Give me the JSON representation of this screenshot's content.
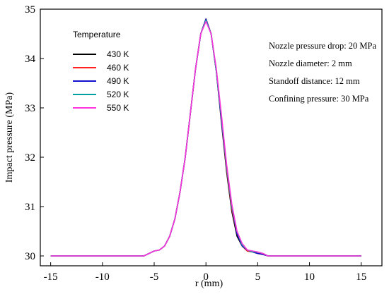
{
  "chart_data": {
    "type": "line",
    "xlabel": "r (mm)",
    "ylabel": "Impact pressure (MPa)",
    "xlim": [
      -16,
      17
    ],
    "ylim": [
      29.8,
      35
    ],
    "xticks": [
      -15,
      -10,
      -5,
      0,
      5,
      10,
      15
    ],
    "yticks": [
      30,
      31,
      32,
      33,
      34,
      35
    ],
    "grid": false,
    "legend": {
      "title": "Temperature",
      "position": "top-left"
    },
    "annotations": [
      "Nozzle pressure drop: 20 MPa",
      "Nozzle diameter: 2 mm",
      "Standoff distance: 12 mm",
      "Confining pressure: 30 MPa"
    ],
    "x": [
      -15,
      -6,
      -5.5,
      -5,
      -4.5,
      -4,
      -3.5,
      -3,
      -2.5,
      -2,
      -1.5,
      -1,
      -0.5,
      0,
      0.5,
      1,
      1.5,
      2,
      2.5,
      3,
      3.5,
      4,
      4.5,
      5,
      5.5,
      6,
      15
    ],
    "series": [
      {
        "name": "430 K",
        "color": "#000000",
        "values": [
          30.0,
          30.0,
          30.05,
          30.1,
          30.12,
          30.2,
          30.4,
          30.75,
          31.3,
          32.0,
          32.9,
          33.8,
          34.5,
          34.8,
          34.5,
          33.75,
          32.7,
          31.7,
          30.9,
          30.4,
          30.2,
          30.1,
          30.08,
          30.05,
          30.03,
          30.0,
          30.0
        ]
      },
      {
        "name": "460 K",
        "color": "#ff2020",
        "values": [
          30.0,
          30.0,
          30.05,
          30.1,
          30.12,
          30.2,
          30.4,
          30.75,
          31.3,
          32.0,
          32.9,
          33.8,
          34.5,
          34.8,
          34.5,
          33.75,
          32.75,
          31.75,
          30.95,
          30.45,
          30.2,
          30.1,
          30.08,
          30.05,
          30.03,
          30.0,
          30.0
        ]
      },
      {
        "name": "490 K",
        "color": "#1010cc",
        "values": [
          30.0,
          30.0,
          30.05,
          30.1,
          30.12,
          30.2,
          30.4,
          30.75,
          31.3,
          32.0,
          32.9,
          33.8,
          34.5,
          34.8,
          34.5,
          33.75,
          32.75,
          31.8,
          31.0,
          30.45,
          30.2,
          30.12,
          30.08,
          30.05,
          30.03,
          30.0,
          30.0
        ]
      },
      {
        "name": "520 K",
        "color": "#00a0a0",
        "values": [
          30.0,
          30.0,
          30.05,
          30.1,
          30.12,
          30.2,
          30.4,
          30.75,
          31.3,
          32.0,
          32.9,
          33.8,
          34.5,
          34.78,
          34.5,
          33.75,
          32.8,
          31.8,
          31.0,
          30.5,
          30.22,
          30.12,
          30.08,
          30.08,
          30.05,
          30.0,
          30.0
        ]
      },
      {
        "name": "550 K",
        "color": "#ff33dd",
        "values": [
          30.0,
          30.0,
          30.05,
          30.1,
          30.12,
          30.2,
          30.4,
          30.75,
          31.3,
          32.0,
          32.9,
          33.8,
          34.5,
          34.75,
          34.5,
          33.8,
          32.85,
          31.85,
          31.05,
          30.5,
          30.25,
          30.12,
          30.1,
          30.08,
          30.05,
          30.0,
          30.0
        ]
      }
    ]
  }
}
